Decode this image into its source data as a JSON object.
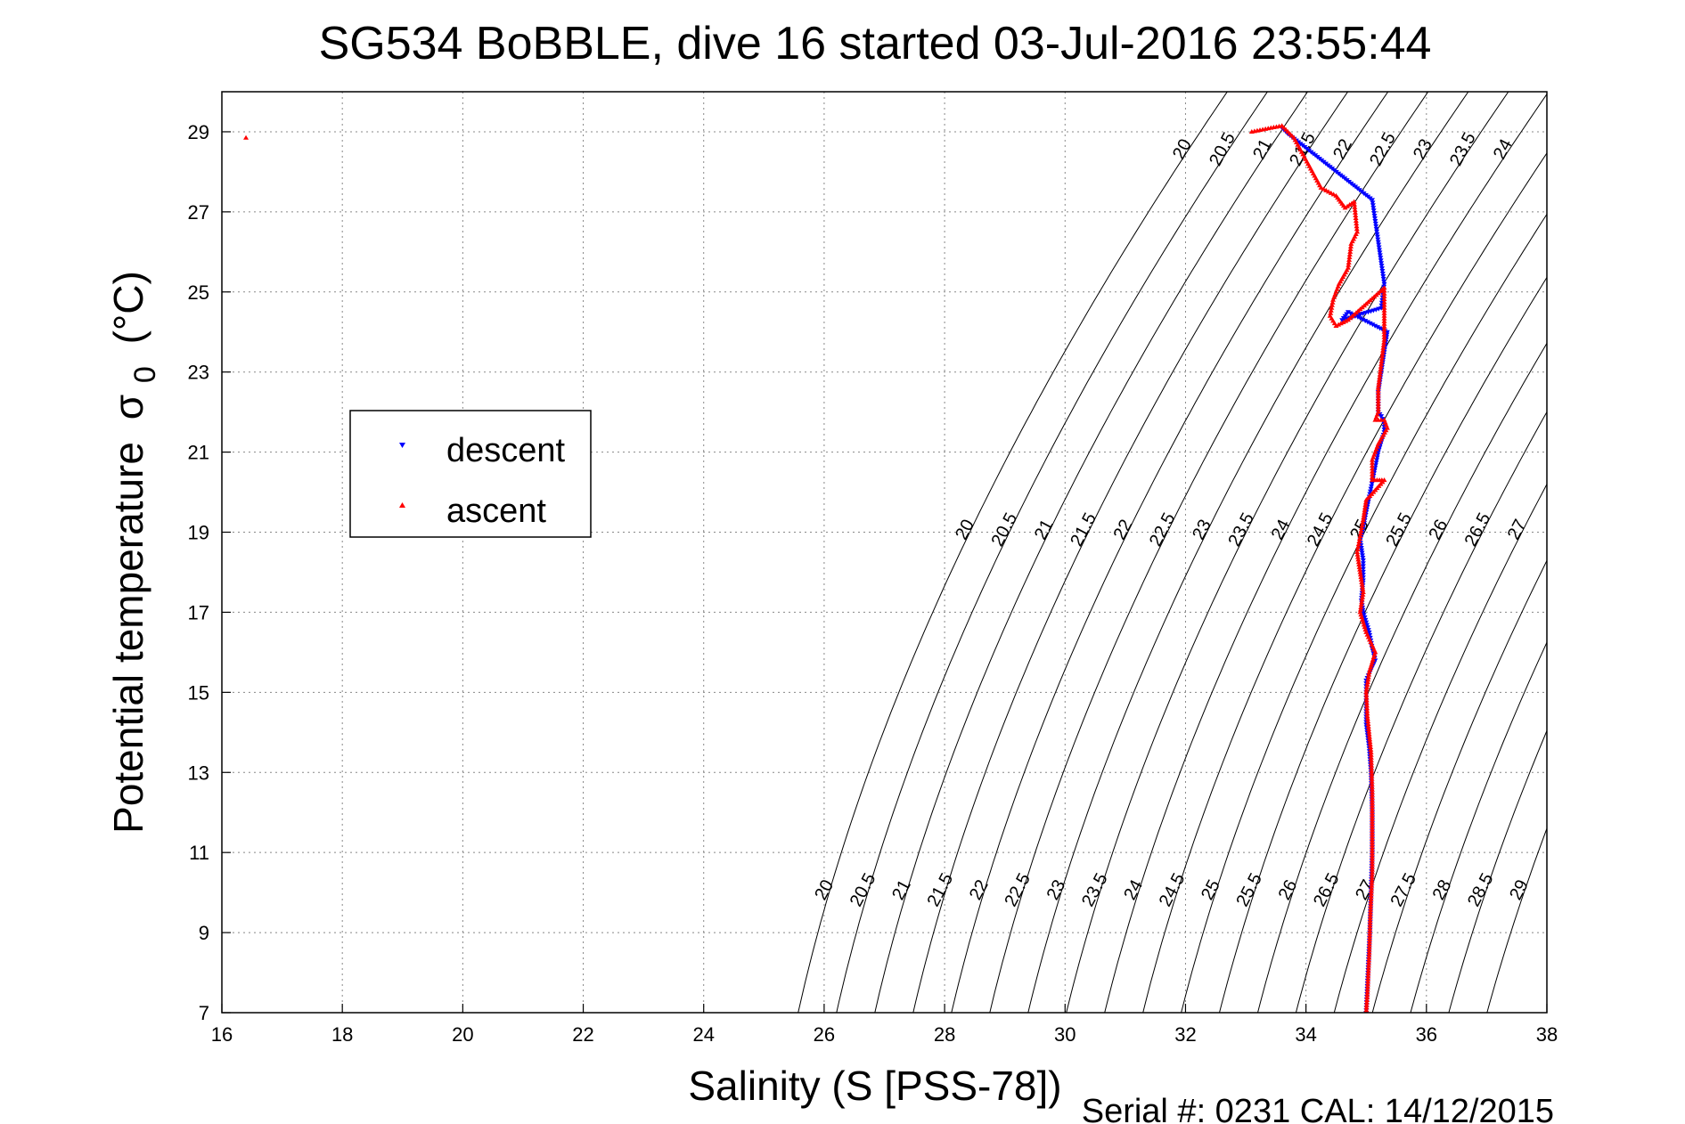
{
  "chart_data": {
    "type": "scatter",
    "title": "SG534 BoBBLE, dive 16 started 03-Jul-2016 23:55:44",
    "xlabel": "Salinity (S [PSS-78])",
    "ylabel": "Potential temperature",
    "ylabel_symbol": "σ",
    "ylabel_subscript": "0",
    "ylabel_unit": "(°C)",
    "xlim": [
      16,
      38
    ],
    "ylim": [
      7,
      30
    ],
    "xticks": [
      16,
      18,
      20,
      22,
      24,
      26,
      28,
      30,
      32,
      34,
      36,
      38
    ],
    "yticks": [
      7,
      9,
      11,
      13,
      15,
      17,
      19,
      21,
      23,
      25,
      27,
      29
    ],
    "grid": true,
    "legend_position": "left-middle",
    "colors": {
      "descent": "#0000ff",
      "ascent": "#ff0000",
      "contour": "#000000"
    },
    "footer": "Serial #: 0231  CAL: 14/12/2015",
    "density_contours": [
      20,
      20.5,
      21,
      21.5,
      22,
      22.5,
      23,
      23.5,
      24,
      24.5,
      25,
      25.5,
      26,
      26.5,
      27,
      27.5,
      28,
      28.5,
      29
    ],
    "series": [
      {
        "name": "descent",
        "marker": "triangle-down",
        "points": [
          [
            33.6,
            29.1
          ],
          [
            33.7,
            28.95
          ],
          [
            35.1,
            27.3
          ],
          [
            35.3,
            25.2
          ],
          [
            35.25,
            24.6
          ],
          [
            34.6,
            24.3
          ],
          [
            34.7,
            24.5
          ],
          [
            35.35,
            24.0
          ],
          [
            35.3,
            23.5
          ],
          [
            35.25,
            23.0
          ],
          [
            35.2,
            22.5
          ],
          [
            35.2,
            22.0
          ],
          [
            35.25,
            21.9
          ],
          [
            35.3,
            21.7
          ],
          [
            35.3,
            21.5
          ],
          [
            35.2,
            21.0
          ],
          [
            35.0,
            19.5
          ],
          [
            34.95,
            19.1
          ],
          [
            34.9,
            18.8
          ],
          [
            34.95,
            18.3
          ],
          [
            34.95,
            17.8
          ],
          [
            34.92,
            17.3
          ],
          [
            34.95,
            17.0
          ],
          [
            35.05,
            16.5
          ],
          [
            35.1,
            16.1
          ],
          [
            35.15,
            15.8
          ],
          [
            35.0,
            15.3
          ],
          [
            35.0,
            14.8
          ],
          [
            35.0,
            14.2
          ],
          [
            35.05,
            13.6
          ],
          [
            35.08,
            13.0
          ],
          [
            35.1,
            12.0
          ],
          [
            35.1,
            11.0
          ],
          [
            35.08,
            10.0
          ],
          [
            35.06,
            9.0
          ],
          [
            35.03,
            8.0
          ],
          [
            35.0,
            7.0
          ]
        ]
      },
      {
        "name": "ascent",
        "marker": "triangle-up",
        "points": [
          [
            16.4,
            28.85
          ],
          [
            33.1,
            29.0
          ],
          [
            33.6,
            29.15
          ],
          [
            33.8,
            28.85
          ],
          [
            34.25,
            27.6
          ],
          [
            34.5,
            27.4
          ],
          [
            34.65,
            27.1
          ],
          [
            34.8,
            27.25
          ],
          [
            34.85,
            26.5
          ],
          [
            34.75,
            26.2
          ],
          [
            34.7,
            25.6
          ],
          [
            34.55,
            25.2
          ],
          [
            34.45,
            24.8
          ],
          [
            34.4,
            24.4
          ],
          [
            34.5,
            24.15
          ],
          [
            34.7,
            24.3
          ],
          [
            35.3,
            25.1
          ],
          [
            35.3,
            24.6
          ],
          [
            35.3,
            23.8
          ],
          [
            35.25,
            23.2
          ],
          [
            35.2,
            22.6
          ],
          [
            35.2,
            22.0
          ],
          [
            35.15,
            21.8
          ],
          [
            35.3,
            21.8
          ],
          [
            35.35,
            21.6
          ],
          [
            35.2,
            21.2
          ],
          [
            35.1,
            20.8
          ],
          [
            35.1,
            20.3
          ],
          [
            35.3,
            20.3
          ],
          [
            35.0,
            19.8
          ],
          [
            34.95,
            19.3
          ],
          [
            34.9,
            18.9
          ],
          [
            34.85,
            18.5
          ],
          [
            34.9,
            18.0
          ],
          [
            34.95,
            17.5
          ],
          [
            34.9,
            17.0
          ],
          [
            35.0,
            16.5
          ],
          [
            35.15,
            16.0
          ],
          [
            35.05,
            15.5
          ],
          [
            35.0,
            15.0
          ],
          [
            35.02,
            14.4
          ],
          [
            35.08,
            13.5
          ],
          [
            35.1,
            12.5
          ],
          [
            35.1,
            11.5
          ],
          [
            35.1,
            10.5
          ],
          [
            35.07,
            9.5
          ],
          [
            35.05,
            8.5
          ],
          [
            35.02,
            7.5
          ],
          [
            35.0,
            7.0
          ]
        ]
      }
    ]
  }
}
